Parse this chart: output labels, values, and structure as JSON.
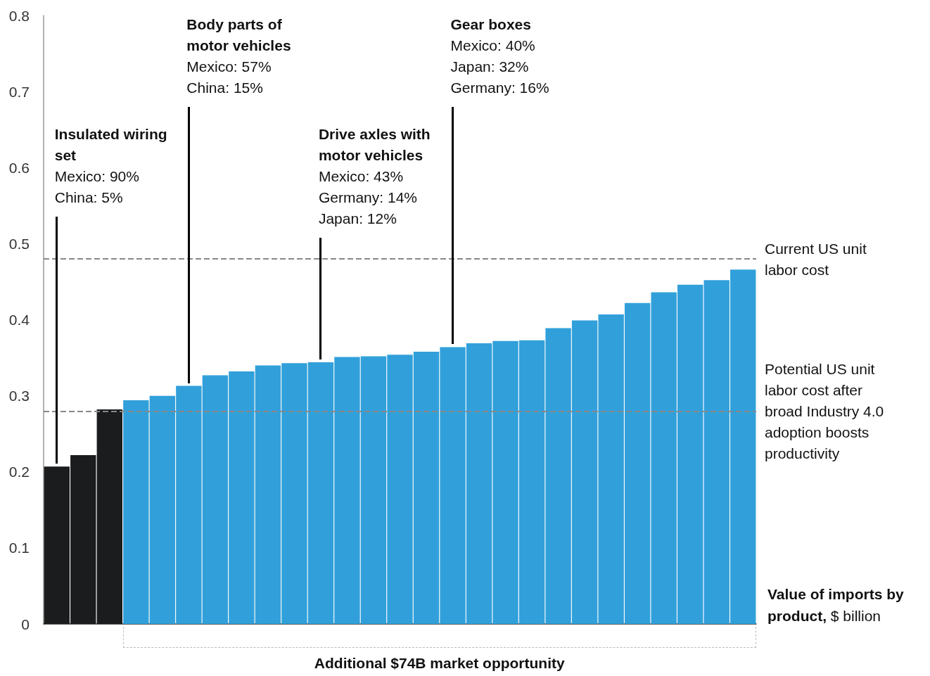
{
  "chart_data": {
    "type": "bar",
    "xlabel": "Value of imports by product, $ billion",
    "categories": [
      null,
      null,
      null,
      null,
      null,
      null,
      null,
      null,
      null,
      null,
      null,
      null,
      null,
      null,
      null,
      null,
      null,
      null,
      null,
      null,
      null,
      null,
      null,
      null,
      null,
      null,
      null
    ],
    "values": [
      0.207,
      0.222,
      0.282,
      0.294,
      0.3,
      0.313,
      0.327,
      0.332,
      0.34,
      0.343,
      0.344,
      0.351,
      0.352,
      0.354,
      0.358,
      0.364,
      0.369,
      0.372,
      0.373,
      0.389,
      0.399,
      0.407,
      0.422,
      0.436,
      0.446,
      0.452,
      0.466
    ],
    "colors": [
      "#1a1c1e",
      "#1a1c1e",
      "#1a1c1e",
      "#31a0da",
      "#31a0da",
      "#31a0da",
      "#31a0da",
      "#31a0da",
      "#31a0da",
      "#31a0da",
      "#31a0da",
      "#31a0da",
      "#31a0da",
      "#31a0da",
      "#31a0da",
      "#31a0da",
      "#31a0da",
      "#31a0da",
      "#31a0da",
      "#31a0da",
      "#31a0da",
      "#31a0da",
      "#31a0da",
      "#31a0da",
      "#31a0da",
      "#31a0da",
      "#31a0da"
    ],
    "ylim": [
      0,
      0.8
    ],
    "yticks": [
      0,
      0.1,
      0.2,
      0.3,
      0.4,
      0.5,
      0.6,
      0.7,
      0.8
    ],
    "tick_labels": "y",
    "grid": false,
    "ref_lines": [
      {
        "axis": "y",
        "value": 0.48,
        "label": "Current US unit labor cost",
        "color": "#888888",
        "line_style": "dashed"
      },
      {
        "axis": "y",
        "value": 0.28,
        "label": "Potential US unit labor cost after broad Industry 4.0 adoption boosts productivity",
        "color": "#888888",
        "line_style": "dashed"
      }
    ],
    "annotations": [
      "Insulated wiring set\nMexico: 90%\nChina: 5%",
      "Body parts of motor vehicles\nMexico: 57%\nChina: 15%",
      "Drive axles with motor vehicles\nMexico: 43%\nGermany: 14%\nJapan: 12%",
      "Gear boxes\nMexico: 40%\nJapan: 32%\nGermany: 16%",
      "Additional $74B market opportunity"
    ]
  }
}
